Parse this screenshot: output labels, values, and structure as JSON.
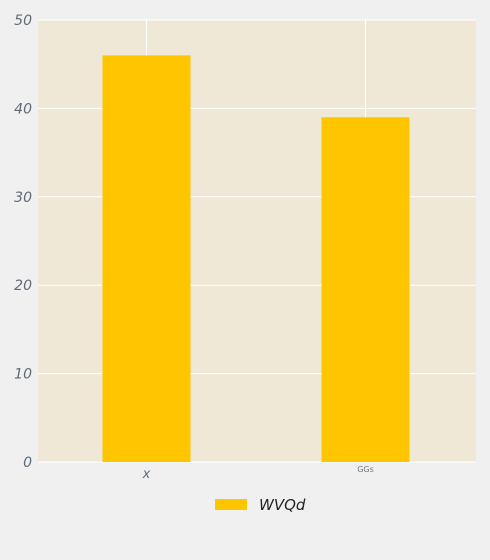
{
  "chart_data": {
    "type": "bar",
    "categories": [
      "x",
      "GGs"
    ],
    "series": [
      {
        "name": "WVQd",
        "values": [
          46,
          39
        ]
      }
    ],
    "ylim": [
      0,
      50
    ],
    "yticks": [
      "0",
      "10",
      "20",
      "30",
      "40",
      "50"
    ],
    "grid": true,
    "legend_position": "bottom",
    "colors": {
      "bar": "#ffc600",
      "plot_background": "#efe8d7",
      "page_background": "#f0f0f0",
      "grid": "#ffffff"
    }
  }
}
